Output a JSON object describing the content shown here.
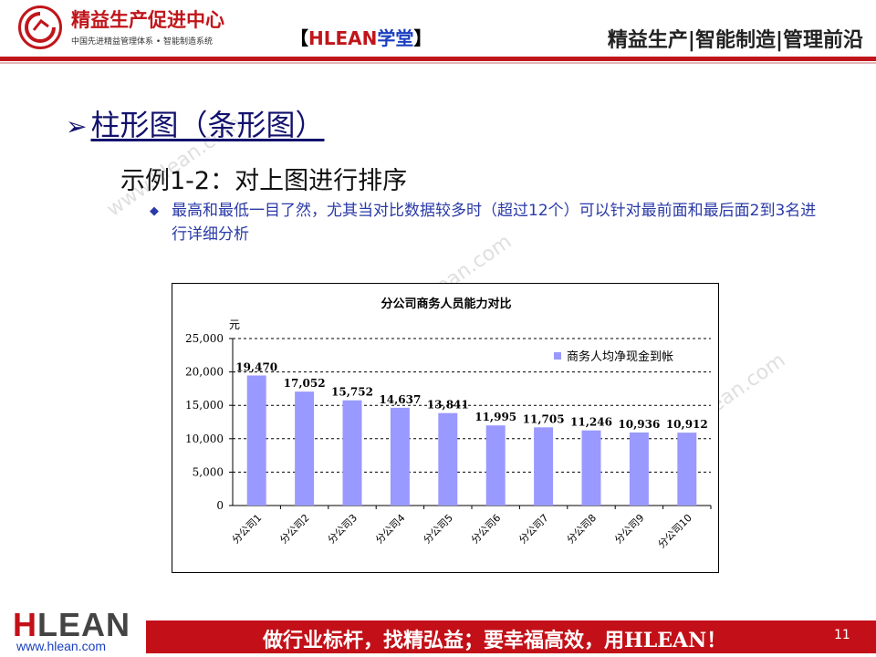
{
  "header": {
    "logo_title": "精益生产促进中心",
    "logo_subtitle": "中国先进精益管理体系 • 智能制造系统",
    "brand_left": "【",
    "brand_h": "HLEAN",
    "brand_cn": "学堂",
    "brand_right": "】",
    "tagline": "精益生产|智能制造|管理前沿"
  },
  "slide": {
    "title": "柱形图（条形图）",
    "example": "示例1-2：对上图进行排序",
    "bullet": "最高和最低一目了然，尤其当对比数据较多时（超过12个）可以针对最前面和最后面2到3名进行详细分析",
    "watermarks": [
      "www.hlean.com",
      "www.hlean.com",
      "www.hlean.com"
    ]
  },
  "chart_data": {
    "type": "bar",
    "title": "分公司商务人员能力对比",
    "ylabel": "元",
    "categories": [
      "分公司1",
      "分公司2",
      "分公司3",
      "分公司4",
      "分公司5",
      "分公司6",
      "分公司7",
      "分公司8",
      "分公司9",
      "分公司10"
    ],
    "series": [
      {
        "name": "商务人均净现金到帐",
        "values": [
          19470,
          17052,
          15752,
          14637,
          13841,
          11995,
          11705,
          11246,
          10936,
          10912
        ]
      }
    ],
    "value_labels": [
      "19,470",
      "17,052",
      "15,752",
      "14,637",
      "13,841",
      "11,995",
      "11,705",
      "11,246",
      "10,936",
      "10,912"
    ],
    "yticks": [
      0,
      5000,
      10000,
      15000,
      20000,
      25000
    ],
    "ytick_labels": [
      "0",
      "5,000",
      "10,000",
      "15,000",
      "20,000",
      "25,000"
    ],
    "ylim": [
      0,
      25000
    ],
    "bar_color": "#9999ff",
    "legend_position": "top-right",
    "grid": true
  },
  "footer": {
    "logo_h": "H",
    "logo_rest": "LEAN",
    "url": "www.hlean.com",
    "slogan": "做行业标杆，找精弘益；要幸福高效，用HLEAN！",
    "page": "11"
  }
}
